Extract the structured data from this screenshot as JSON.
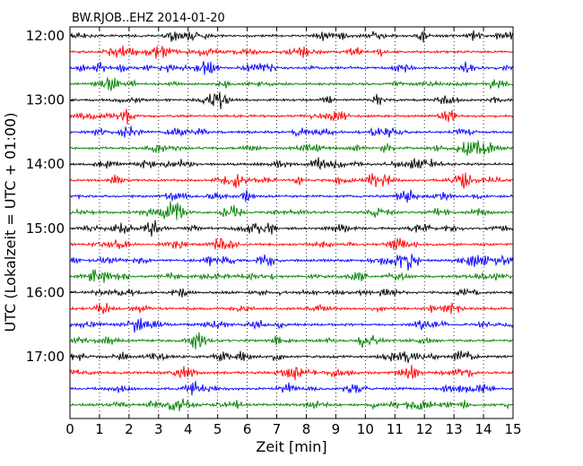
{
  "chart_data": {
    "type": "line",
    "title": "BW.RJOB..EHZ 2014-01-20",
    "xlabel": "Zeit  [min]",
    "ylabel": "UTC (Lokalzeit = UTC + 01:00)",
    "xlim": [
      0,
      15
    ],
    "x_ticks": [
      0,
      1,
      2,
      3,
      4,
      5,
      6,
      7,
      8,
      9,
      10,
      11,
      12,
      13,
      14,
      15
    ],
    "y_tick_labels": [
      "12:00",
      "13:00",
      "14:00",
      "15:00",
      "16:00",
      "17:00"
    ],
    "trace_start_times": [
      "12:00",
      "12:15",
      "12:30",
      "12:45",
      "13:00",
      "13:15",
      "13:30",
      "13:45",
      "14:00",
      "14:15",
      "14:30",
      "14:45",
      "15:00",
      "15:15",
      "15:30",
      "15:45",
      "16:00",
      "16:15",
      "16:30",
      "16:45",
      "17:00",
      "17:15",
      "17:30",
      "17:45"
    ],
    "trace_minutes": 15,
    "trace_colors": [
      "#000000",
      "#ff0000",
      "#0000ff",
      "#008000"
    ],
    "grid": "vertical dotted"
  }
}
